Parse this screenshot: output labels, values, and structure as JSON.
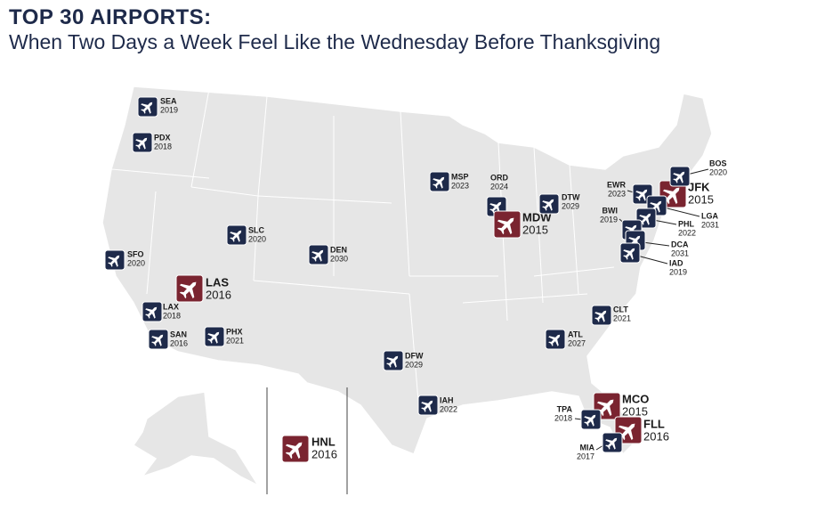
{
  "header": {
    "title": "TOP 30 AIRPORTS:",
    "subtitle": "When Two Days a Week Feel Like the Wednesday Before Thanksgiving"
  },
  "highlight_color": "#7a2430",
  "normal_color": "#1e2a4a",
  "airports": [
    {
      "code": "SEA",
      "year": "2019",
      "highlight": false
    },
    {
      "code": "PDX",
      "year": "2018",
      "highlight": false
    },
    {
      "code": "SFO",
      "year": "2020",
      "highlight": false
    },
    {
      "code": "LAS",
      "year": "2016",
      "highlight": true
    },
    {
      "code": "LAX",
      "year": "2018",
      "highlight": false
    },
    {
      "code": "SAN",
      "year": "2016",
      "highlight": false
    },
    {
      "code": "PHX",
      "year": "2021",
      "highlight": false
    },
    {
      "code": "SLC",
      "year": "2020",
      "highlight": false
    },
    {
      "code": "DEN",
      "year": "2030",
      "highlight": false
    },
    {
      "code": "DFW",
      "year": "2029",
      "highlight": false
    },
    {
      "code": "IAH",
      "year": "2022",
      "highlight": false
    },
    {
      "code": "MSP",
      "year": "2023",
      "highlight": false
    },
    {
      "code": "ORD",
      "year": "2024",
      "highlight": false
    },
    {
      "code": "MDW",
      "year": "2015",
      "highlight": true
    },
    {
      "code": "DTW",
      "year": "2029",
      "highlight": false
    },
    {
      "code": "ATL",
      "year": "2027",
      "highlight": false
    },
    {
      "code": "CLT",
      "year": "2021",
      "highlight": false
    },
    {
      "code": "MCO",
      "year": "2015",
      "highlight": true
    },
    {
      "code": "FLL",
      "year": "2016",
      "highlight": true
    },
    {
      "code": "TPA",
      "year": "2018",
      "highlight": false
    },
    {
      "code": "MIA",
      "year": "2017",
      "highlight": false
    },
    {
      "code": "EWR",
      "year": "2023",
      "highlight": false
    },
    {
      "code": "JFK",
      "year": "2015",
      "highlight": true
    },
    {
      "code": "BOS",
      "year": "2020",
      "highlight": false
    },
    {
      "code": "LGA",
      "year": "2031",
      "highlight": false
    },
    {
      "code": "PHL",
      "year": "2022",
      "highlight": false
    },
    {
      "code": "BWI",
      "year": "2019",
      "highlight": false
    },
    {
      "code": "DCA",
      "year": "2031",
      "highlight": false
    },
    {
      "code": "IAD",
      "year": "2019",
      "highlight": false
    },
    {
      "code": "HNL",
      "year": "2016",
      "highlight": true
    }
  ]
}
